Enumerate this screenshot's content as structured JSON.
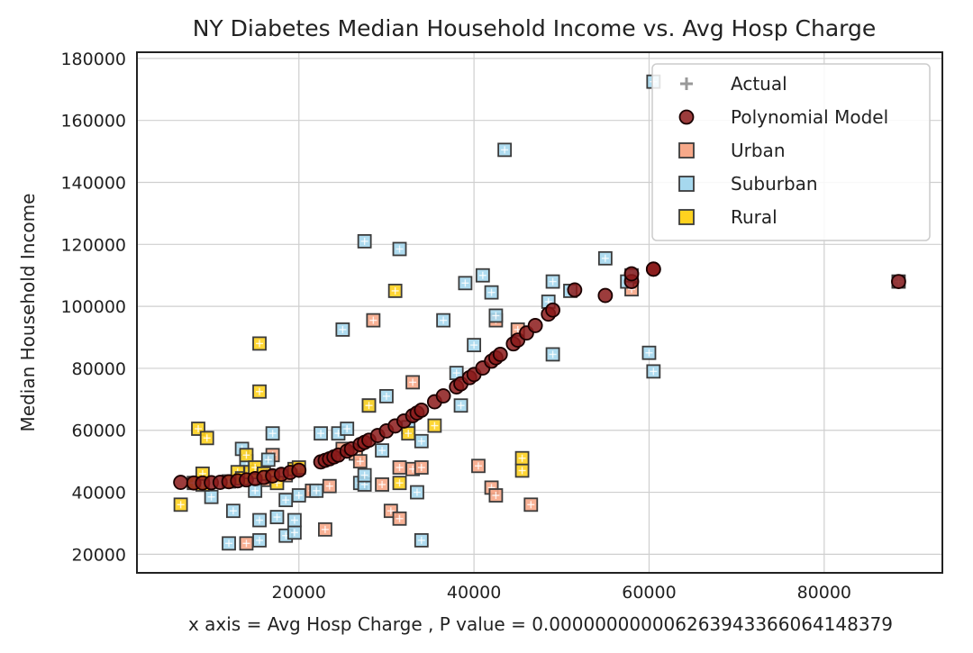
{
  "chart_data": {
    "type": "scatter",
    "title": "NY Diabetes Median Household Income vs. Avg Hosp Charge",
    "xlabel": "x axis = Avg Hosp Charge , P value = 0.0000000000626394336606414837⁠\b9",
    "ylabel": "Median Household Income",
    "xlim": [
      1500,
      93500
    ],
    "ylim": [
      14000,
      182000
    ],
    "xticks": [
      20000,
      40000,
      60000,
      80000
    ],
    "yticks": [
      20000,
      40000,
      60000,
      80000,
      100000,
      120000,
      140000,
      160000,
      180000
    ],
    "grid": true,
    "legend_position": "top-right",
    "legend": [
      "Actual",
      "Polynomial Model",
      "Urban",
      "Suburban",
      "Rural"
    ],
    "colors": {
      "urban": "#f7a98a",
      "suburban": "#a6d8ee",
      "rural": "#ffd21f",
      "model": "#8b1a1a",
      "actual": "#999999"
    },
    "series": [
      {
        "name": "Urban",
        "points": [
          [
            14000,
            23500
          ],
          [
            17000,
            52000
          ],
          [
            21500,
            40500
          ],
          [
            23000,
            28000
          ],
          [
            23500,
            42000
          ],
          [
            26500,
            52500
          ],
          [
            27000,
            50000
          ],
          [
            28500,
            95500
          ],
          [
            29500,
            42500
          ],
          [
            30500,
            34000
          ],
          [
            31500,
            31500
          ],
          [
            31500,
            48000
          ],
          [
            33000,
            75500
          ],
          [
            33000,
            47500
          ],
          [
            34000,
            48000
          ],
          [
            40500,
            48500
          ],
          [
            42000,
            41500
          ],
          [
            42500,
            39000
          ],
          [
            42500,
            95500
          ],
          [
            45000,
            92500
          ],
          [
            46500,
            36000
          ],
          [
            58000,
            105500
          ],
          [
            18500,
            45500
          ],
          [
            16000,
            44000
          ],
          [
            25000,
            54000
          ]
        ]
      },
      {
        "name": "Suburban",
        "points": [
          [
            10000,
            38500
          ],
          [
            12000,
            23500
          ],
          [
            12500,
            34000
          ],
          [
            13500,
            54000
          ],
          [
            14000,
            50000
          ],
          [
            15000,
            40500
          ],
          [
            15500,
            31000
          ],
          [
            15500,
            24500
          ],
          [
            16500,
            50500
          ],
          [
            17000,
            59000
          ],
          [
            17500,
            32000
          ],
          [
            18500,
            26000
          ],
          [
            18500,
            37500
          ],
          [
            19500,
            27000
          ],
          [
            19500,
            31000
          ],
          [
            20000,
            39000
          ],
          [
            22000,
            40500
          ],
          [
            22500,
            59000
          ],
          [
            24500,
            59000
          ],
          [
            25000,
            92500
          ],
          [
            25500,
            60500
          ],
          [
            27000,
            43000
          ],
          [
            27500,
            121000
          ],
          [
            27500,
            42500
          ],
          [
            27500,
            45500
          ],
          [
            28000,
            68000
          ],
          [
            29500,
            53500
          ],
          [
            30000,
            71000
          ],
          [
            31500,
            118500
          ],
          [
            32500,
            61000
          ],
          [
            33500,
            40000
          ],
          [
            34000,
            24500
          ],
          [
            34000,
            56500
          ],
          [
            36500,
            95500
          ],
          [
            38000,
            78500
          ],
          [
            38500,
            68000
          ],
          [
            39000,
            107500
          ],
          [
            40000,
            87500
          ],
          [
            41000,
            110000
          ],
          [
            42000,
            104500
          ],
          [
            42500,
            97000
          ],
          [
            43500,
            150500
          ],
          [
            48500,
            101500
          ],
          [
            49000,
            108000
          ],
          [
            49000,
            84500
          ],
          [
            51000,
            105000
          ],
          [
            55000,
            115500
          ],
          [
            57500,
            108000
          ],
          [
            58000,
            110000
          ],
          [
            60000,
            85000
          ],
          [
            60500,
            79000
          ],
          [
            60500,
            172500
          ],
          [
            88500,
            108000
          ]
        ]
      },
      {
        "name": "Rural",
        "points": [
          [
            6500,
            36000
          ],
          [
            8000,
            43000
          ],
          [
            8500,
            60500
          ],
          [
            9000,
            42500
          ],
          [
            9000,
            46000
          ],
          [
            9500,
            57500
          ],
          [
            12000,
            43500
          ],
          [
            13000,
            46500
          ],
          [
            13500,
            44500
          ],
          [
            14000,
            52000
          ],
          [
            14500,
            46500
          ],
          [
            15000,
            48000
          ],
          [
            15500,
            88000
          ],
          [
            15500,
            72500
          ],
          [
            16000,
            46000
          ],
          [
            17000,
            45000
          ],
          [
            17500,
            43000
          ],
          [
            19500,
            47500
          ],
          [
            20000,
            48000
          ],
          [
            28000,
            68000
          ],
          [
            31000,
            105000
          ],
          [
            31500,
            43000
          ],
          [
            32500,
            59000
          ],
          [
            35500,
            61500
          ],
          [
            45500,
            47000
          ],
          [
            45500,
            51000
          ]
        ]
      },
      {
        "name": "Polynomial Model",
        "points": [
          [
            6500,
            43200
          ],
          [
            8000,
            43000
          ],
          [
            9000,
            43000
          ],
          [
            10000,
            43100
          ],
          [
            11000,
            43200
          ],
          [
            12000,
            43400
          ],
          [
            13000,
            43700
          ],
          [
            14000,
            44000
          ],
          [
            15000,
            44400
          ],
          [
            16000,
            44800
          ],
          [
            17000,
            45300
          ],
          [
            18000,
            45800
          ],
          [
            19000,
            46400
          ],
          [
            20000,
            47100
          ],
          [
            22500,
            49800
          ],
          [
            23000,
            50300
          ],
          [
            23500,
            50800
          ],
          [
            24000,
            51400
          ],
          [
            24500,
            52000
          ],
          [
            25500,
            53300
          ],
          [
            26000,
            54000
          ],
          [
            27000,
            55400
          ],
          [
            27500,
            56100
          ],
          [
            28000,
            56800
          ],
          [
            29000,
            58300
          ],
          [
            30000,
            59800
          ],
          [
            31000,
            61400
          ],
          [
            32000,
            63000
          ],
          [
            33000,
            64700
          ],
          [
            33500,
            65600
          ],
          [
            34000,
            66500
          ],
          [
            35500,
            69200
          ],
          [
            36500,
            71100
          ],
          [
            38000,
            74000
          ],
          [
            38500,
            75000
          ],
          [
            39500,
            77000
          ],
          [
            40000,
            78000
          ],
          [
            41000,
            80100
          ],
          [
            42000,
            82300
          ],
          [
            42500,
            83400
          ],
          [
            43000,
            84500
          ],
          [
            44500,
            87900
          ],
          [
            45000,
            89100
          ],
          [
            46000,
            91400
          ],
          [
            47000,
            93800
          ],
          [
            48500,
            97500
          ],
          [
            49000,
            98800
          ],
          [
            51500,
            105300
          ],
          [
            55000,
            103500
          ],
          [
            58000,
            108000
          ],
          [
            58000,
            110500
          ],
          [
            60500,
            112000
          ],
          [
            60500,
            112000
          ],
          [
            88500,
            108000
          ]
        ]
      }
    ]
  }
}
